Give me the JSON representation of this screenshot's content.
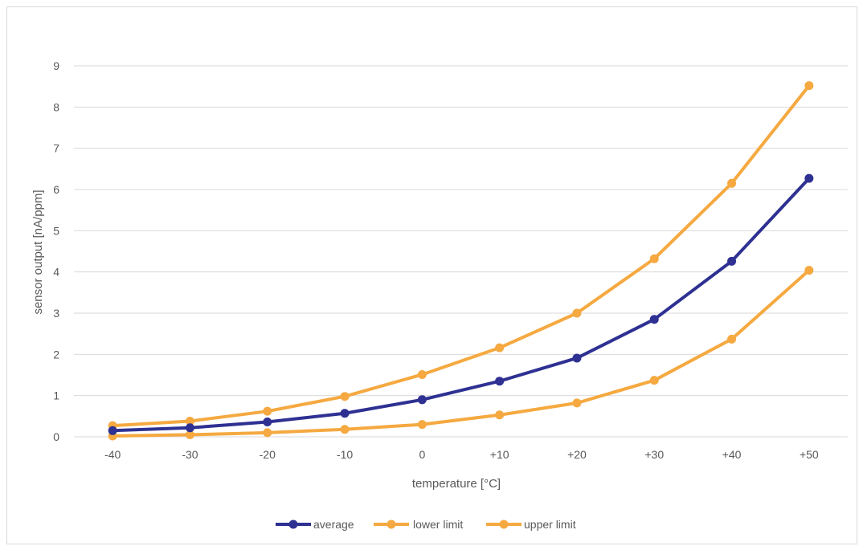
{
  "chart_data": {
    "type": "line",
    "xlabel": "temperature [°C]",
    "ylabel": "sensor output [nA/ppm]",
    "categories": [
      "-40",
      "-30",
      "-20",
      "-10",
      "0",
      "+10",
      "+20",
      "+30",
      "+40",
      "+50"
    ],
    "ylim": [
      0,
      9
    ],
    "yticks": [
      "0",
      "1",
      "2",
      "3",
      "4",
      "5",
      "6",
      "7",
      "8",
      "9"
    ],
    "grid": true,
    "legend_position": "bottom",
    "series": [
      {
        "name": "average",
        "color": "#2e3192",
        "values": [
          0.15,
          0.22,
          0.36,
          0.57,
          0.9,
          1.35,
          1.91,
          2.85,
          4.26,
          6.27
        ]
      },
      {
        "name": "lower limit",
        "color": "#f5a940",
        "values": [
          0.02,
          0.05,
          0.1,
          0.18,
          0.3,
          0.53,
          0.82,
          1.37,
          2.37,
          4.04
        ]
      },
      {
        "name": "upper limit",
        "color": "#f5a940",
        "values": [
          0.27,
          0.38,
          0.62,
          0.98,
          1.51,
          2.16,
          3.0,
          4.32,
          6.15,
          8.52
        ]
      }
    ]
  }
}
